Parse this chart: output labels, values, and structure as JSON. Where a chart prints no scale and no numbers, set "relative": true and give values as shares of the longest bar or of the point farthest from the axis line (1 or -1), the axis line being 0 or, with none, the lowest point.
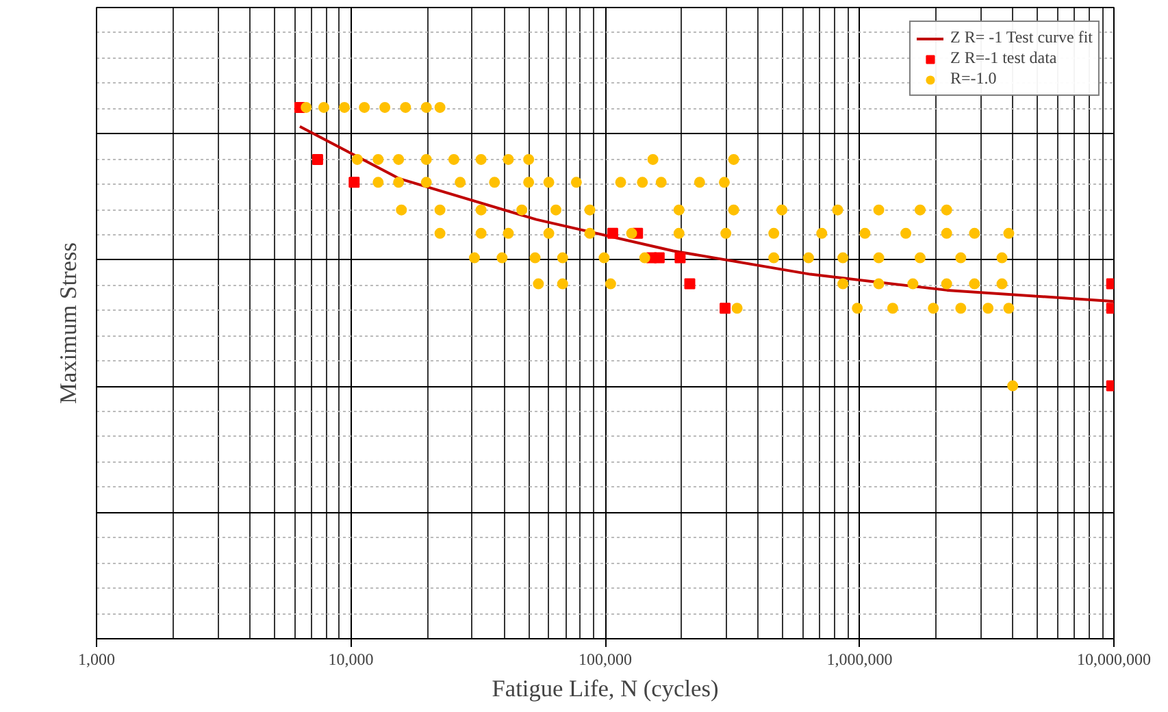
{
  "chart_data": {
    "type": "scatter",
    "relative": true,
    "log": "x",
    "grid": true,
    "legend": "top right",
    "tick_labels": "x",
    "xlabel": "Fatigue Life, N (cycles)",
    "ylabel": "Maximum Stress",
    "xlim": [
      1000,
      10000000
    ],
    "xticks": [
      {
        "value": 1000,
        "label": "1,000"
      },
      {
        "value": 10000,
        "label": "10,000"
      },
      {
        "value": 100000,
        "label": "100,000"
      },
      {
        "value": 1000000,
        "label": "1,000,000"
      },
      {
        "value": 10000000,
        "label": "10,000,000"
      }
    ],
    "series": [
      {
        "name": "Z R= -1 Test curve fit",
        "type": "line",
        "marker": "none",
        "line_style": "solid",
        "color": "#c00000",
        "x": [
          6300,
          15500,
          53600,
          185000,
          640000,
          2210000,
          10000000
        ],
        "values": [
          0.964,
          0.866,
          0.789,
          0.73,
          0.686,
          0.656,
          0.635
        ]
      },
      {
        "name": "Z R=-1 test data",
        "marker": "square",
        "color": "#ff0000",
        "x": [
          6300,
          7400,
          10300,
          107000,
          134000,
          152000,
          163000,
          197000,
          215000,
          296000,
          9800000,
          9800000,
          9800000
        ],
        "values": [
          1.0,
          0.902,
          0.859,
          0.763,
          0.763,
          0.717,
          0.717,
          0.717,
          0.668,
          0.622,
          0.668,
          0.622,
          0.476
        ]
      },
      {
        "name": "R=-1.0",
        "marker": "circle",
        "color": "#ffc000",
        "x": [
          6670,
          7830,
          9430,
          11300,
          13600,
          16400,
          19800,
          22400,
          10600,
          12800,
          15400,
          19800,
          25400,
          32500,
          41600,
          50000,
          154000,
          320000,
          12800,
          15400,
          19800,
          26900,
          36700,
          50000,
          60000,
          77000,
          115000,
          140000,
          166000,
          235000,
          294000,
          15800,
          22400,
          32500,
          47000,
          64000,
          87000,
          195000,
          320000,
          495000,
          820000,
          1190000,
          1730000,
          2200000,
          22400,
          32500,
          41600,
          60000,
          87000,
          127000,
          195000,
          298000,
          460000,
          710000,
          1050000,
          1520000,
          2200000,
          2830000,
          3860000,
          30600,
          39300,
          53000,
          68000,
          99000,
          143000,
          460000,
          630000,
          860000,
          1190000,
          1730000,
          2500000,
          3630000,
          54600,
          68000,
          105000,
          860000,
          1190000,
          1620000,
          2200000,
          2830000,
          3630000,
          980000,
          1350000,
          1950000,
          2500000,
          3200000,
          3860000,
          330000,
          4000000
        ],
        "values": [
          1.0,
          1.0,
          1.0,
          1.0,
          1.0,
          1.0,
          1.0,
          1.0,
          0.902,
          0.902,
          0.902,
          0.902,
          0.902,
          0.902,
          0.902,
          0.902,
          0.902,
          0.902,
          0.859,
          0.859,
          0.859,
          0.859,
          0.859,
          0.859,
          0.859,
          0.859,
          0.859,
          0.859,
          0.859,
          0.859,
          0.859,
          0.807,
          0.807,
          0.807,
          0.807,
          0.807,
          0.807,
          0.807,
          0.807,
          0.807,
          0.807,
          0.807,
          0.807,
          0.807,
          0.763,
          0.763,
          0.763,
          0.763,
          0.763,
          0.763,
          0.763,
          0.763,
          0.763,
          0.763,
          0.763,
          0.763,
          0.763,
          0.763,
          0.763,
          0.717,
          0.717,
          0.717,
          0.717,
          0.717,
          0.717,
          0.717,
          0.717,
          0.717,
          0.717,
          0.717,
          0.717,
          0.717,
          0.668,
          0.668,
          0.668,
          0.668,
          0.668,
          0.668,
          0.668,
          0.668,
          0.668,
          0.622,
          0.622,
          0.622,
          0.622,
          0.622,
          0.622,
          0.622,
          0.476
        ]
      }
    ]
  }
}
